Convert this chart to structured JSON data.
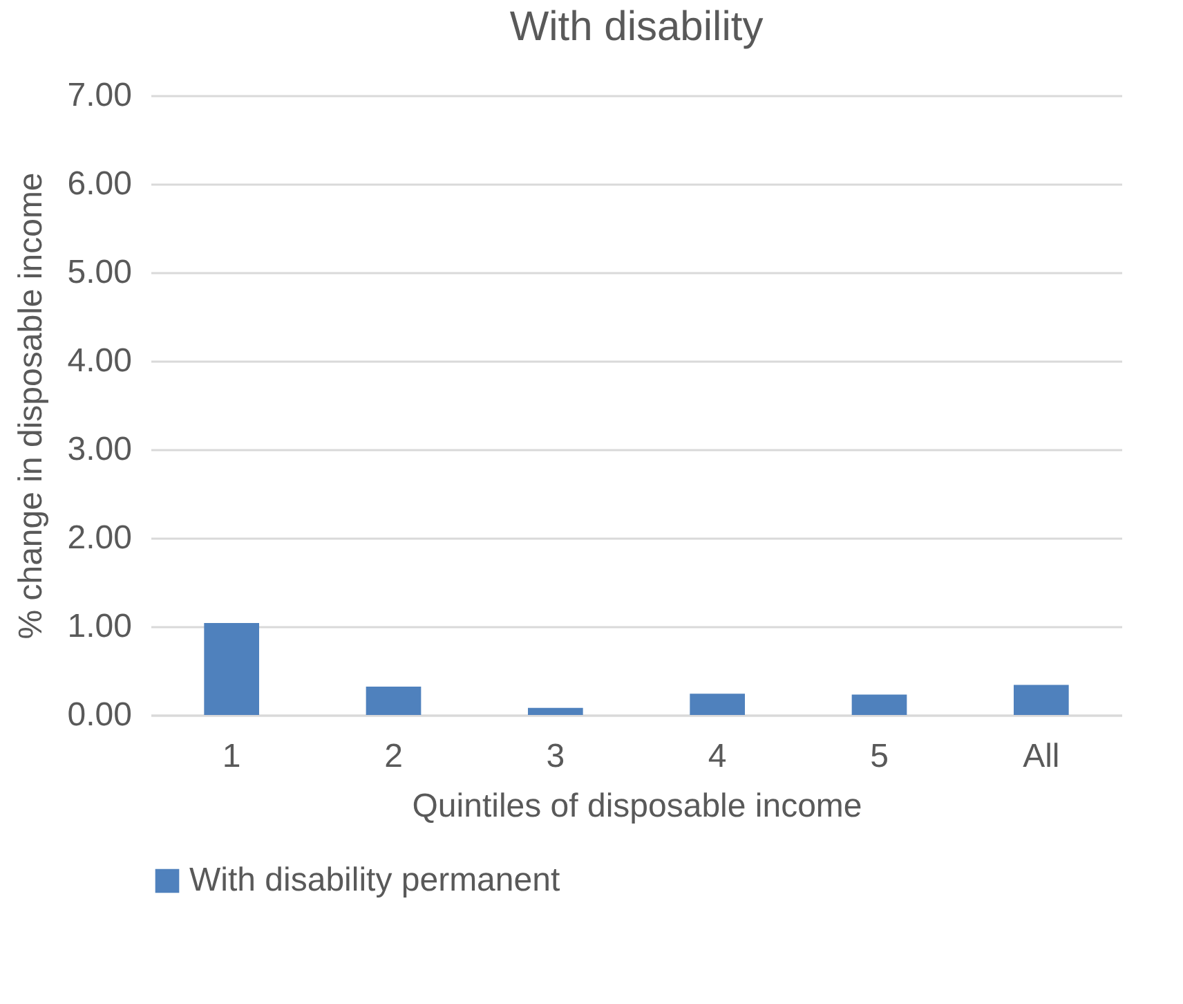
{
  "chart_data": {
    "type": "bar",
    "title": "With disability",
    "xlabel": "Quintiles of disposable income",
    "ylabel": "% change in disposable income",
    "categories": [
      "1",
      "2",
      "3",
      "4",
      "5",
      "All"
    ],
    "series": [
      {
        "name": "With disability permanent",
        "color": "#4f81bd",
        "values": [
          1.04,
          0.32,
          0.08,
          0.24,
          0.23,
          0.34
        ]
      }
    ],
    "ylim": [
      0,
      7
    ],
    "yticks": [
      {
        "value": 0,
        "label": "0.00"
      },
      {
        "value": 1,
        "label": "1.00"
      },
      {
        "value": 2,
        "label": "2.00"
      },
      {
        "value": 3,
        "label": "3.00"
      },
      {
        "value": 4,
        "label": "4.00"
      },
      {
        "value": 5,
        "label": "5.00"
      },
      {
        "value": 6,
        "label": "6.00"
      },
      {
        "value": 7,
        "label": "7.00"
      }
    ],
    "grid": "y",
    "legend": "bottom"
  }
}
